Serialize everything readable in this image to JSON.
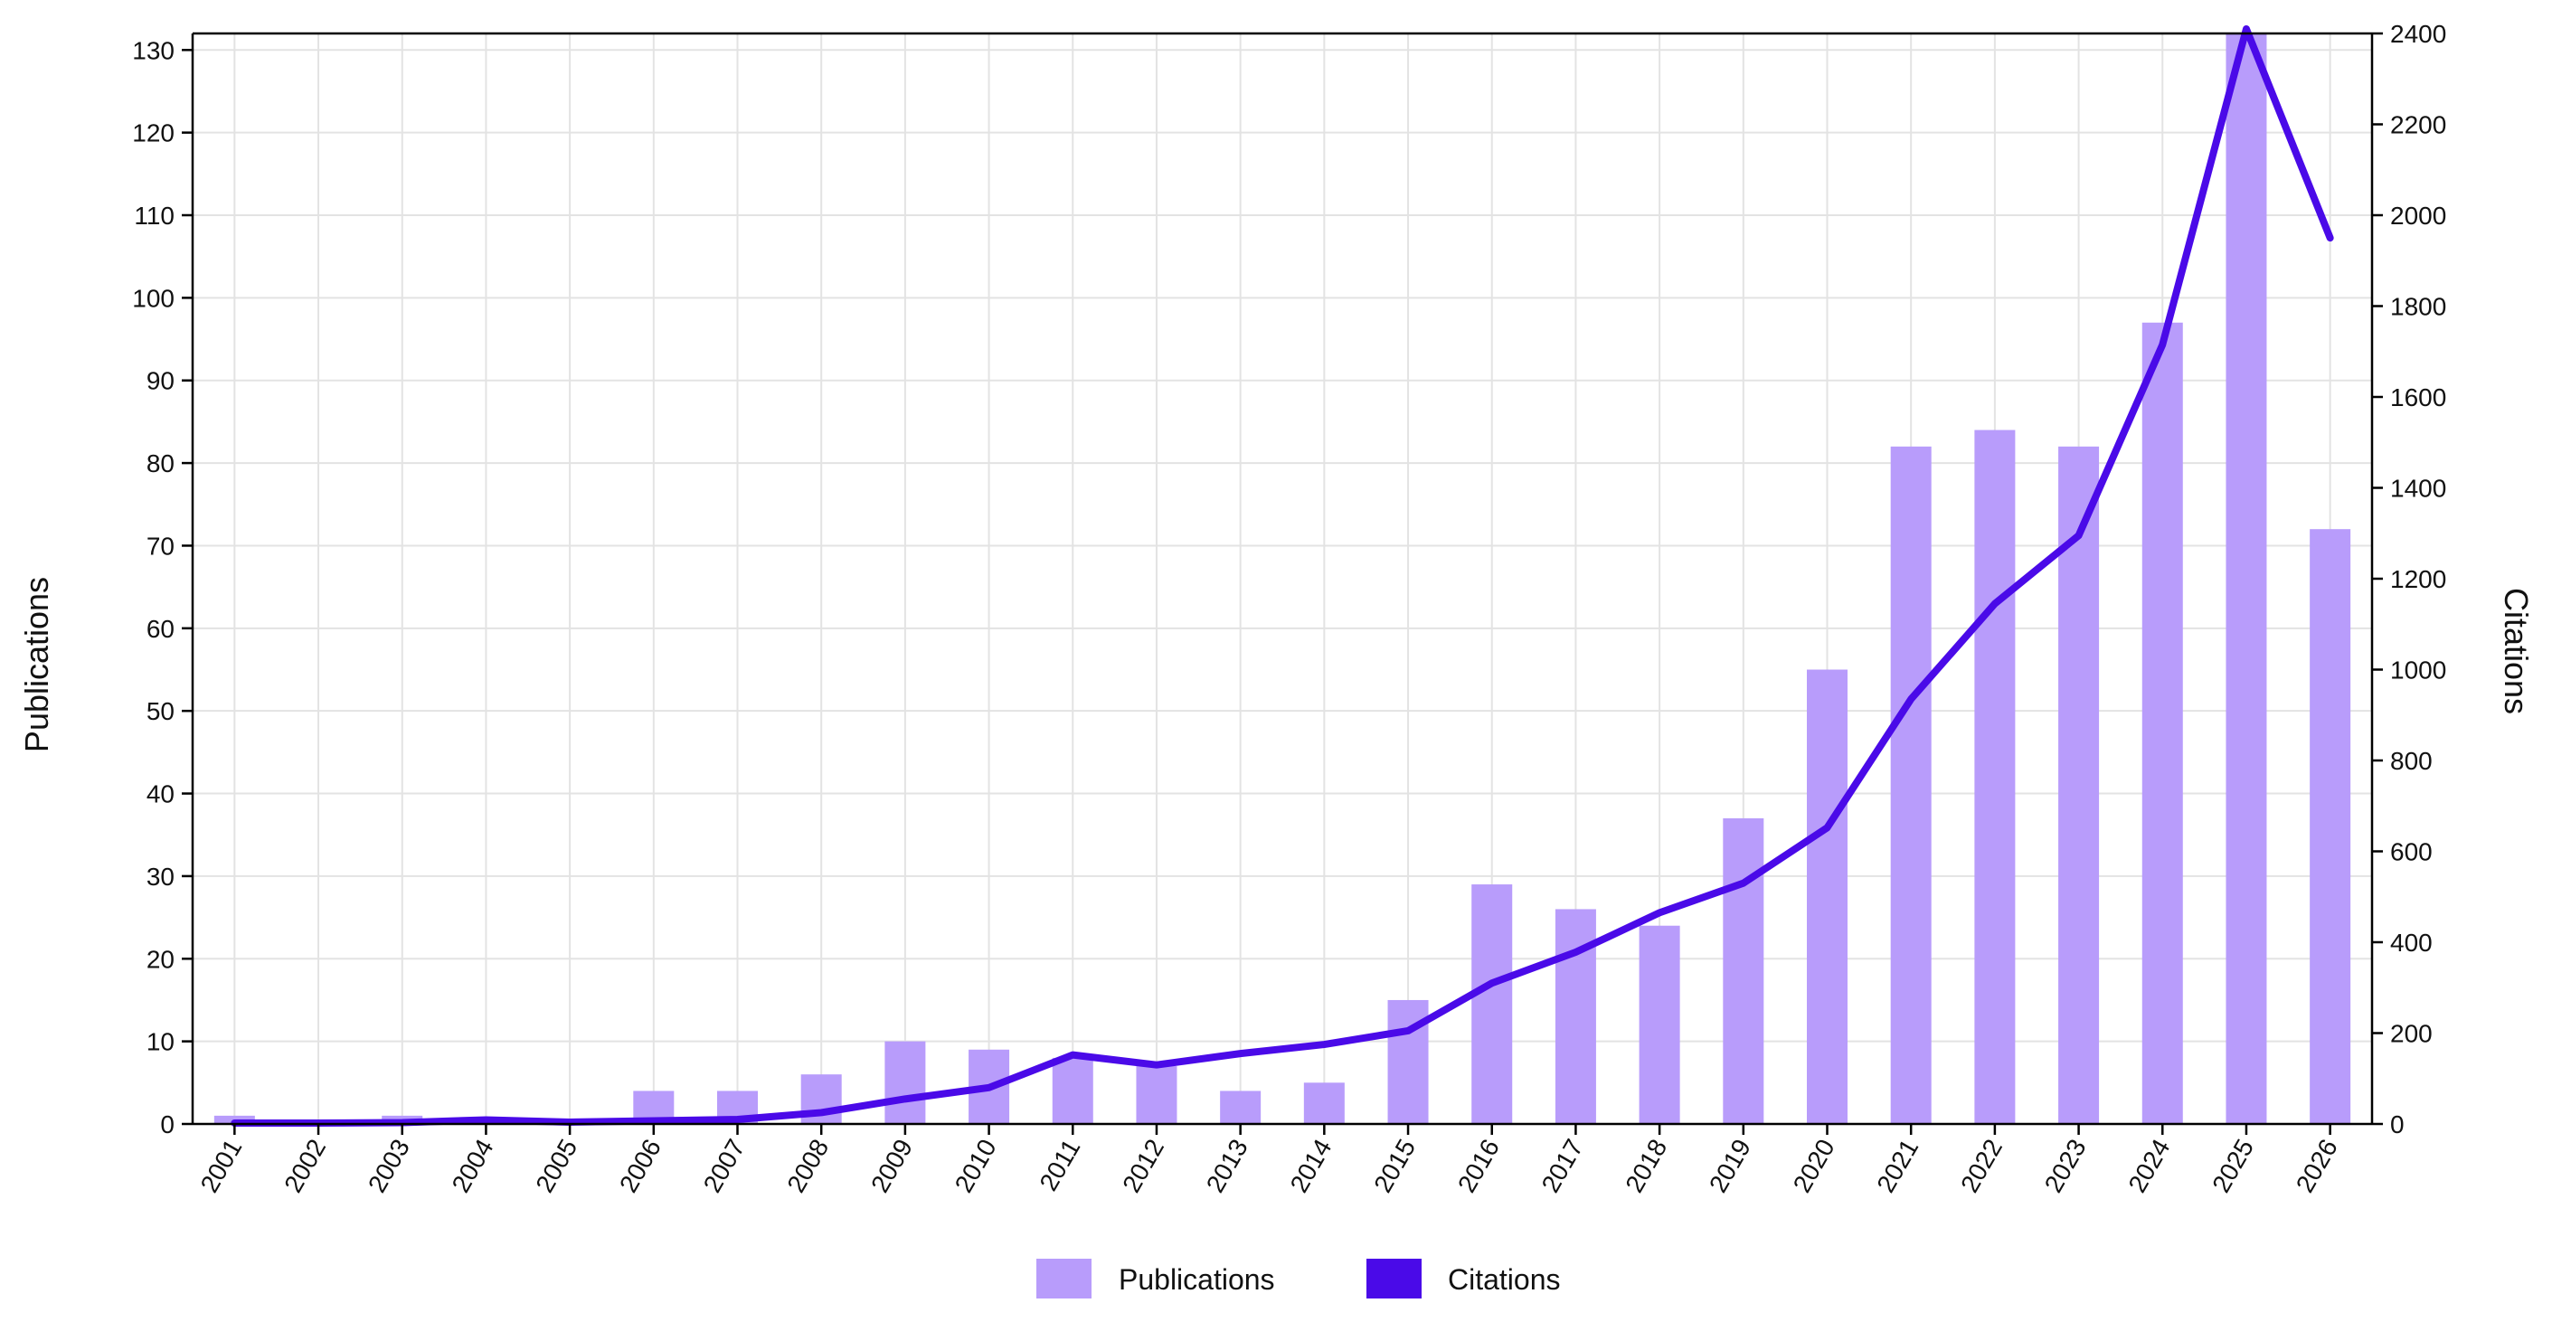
{
  "chart_data": {
    "type": "bar",
    "title": "",
    "xlabel": "",
    "ylabel": "Publications",
    "y2label": "Citations",
    "ylim": [
      0,
      132
    ],
    "y2lim": [
      0,
      2400
    ],
    "yticks": [
      0,
      10,
      20,
      30,
      40,
      50,
      60,
      70,
      80,
      90,
      100,
      110,
      120,
      130
    ],
    "y2ticks": [
      0,
      200,
      400,
      600,
      800,
      1000,
      1200,
      1400,
      1600,
      1800,
      2000,
      2200,
      2400
    ],
    "grid": true,
    "legend_position": "bottom-center",
    "categories": [
      "2001",
      "2002",
      "2003",
      "2004",
      "2005",
      "2006",
      "2007",
      "2008",
      "2009",
      "2010",
      "2011",
      "2012",
      "2013",
      "2014",
      "2015",
      "2016",
      "2017",
      "2018",
      "2019",
      "2020",
      "2021",
      "2022",
      "2023",
      "2024",
      "2025",
      "2026"
    ],
    "series": [
      {
        "name": "Publications",
        "type": "bar",
        "axis": "left",
        "color": "#b89cfb",
        "values": [
          1,
          0,
          1,
          0,
          0,
          4,
          4,
          6,
          10,
          9,
          8,
          7,
          4,
          5,
          15,
          29,
          26,
          24,
          37,
          55,
          82,
          84,
          82,
          97,
          132,
          72
        ]
      },
      {
        "name": "Citations",
        "type": "line",
        "axis": "right",
        "color": "#4a0ae8",
        "values": [
          2,
          2,
          3,
          9,
          4,
          7,
          10,
          25,
          55,
          80,
          152,
          130,
          155,
          175,
          205,
          310,
          378,
          465,
          530,
          652,
          935,
          1145,
          1295,
          1715,
          2410,
          1950
        ]
      }
    ]
  }
}
